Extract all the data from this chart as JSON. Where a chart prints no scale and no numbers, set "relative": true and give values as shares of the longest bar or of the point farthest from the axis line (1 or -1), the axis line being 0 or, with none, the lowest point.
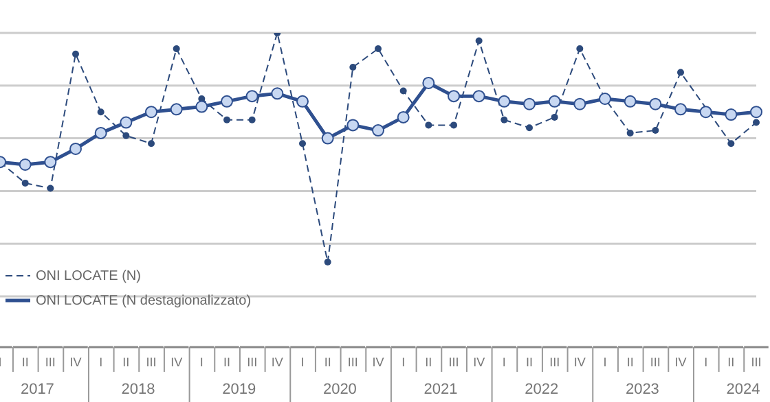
{
  "chart_data": {
    "type": "line",
    "relative": true,
    "grid": "y",
    "legend": "bottom left",
    "marker": "circle",
    "categories": [
      "I",
      "II",
      "III",
      "IV",
      "I",
      "II",
      "III",
      "IV",
      "I",
      "II",
      "III",
      "IV",
      "I",
      "II",
      "III",
      "IV",
      "I",
      "II",
      "III",
      "IV",
      "I",
      "II",
      "III",
      "IV",
      "I",
      "II",
      "III",
      "IV",
      "I",
      "II",
      "III"
    ],
    "annotations": [
      "2017",
      "2018",
      "2019",
      "2020",
      "2021",
      "2022",
      "2023",
      "2024"
    ],
    "series": [
      {
        "name": "ONI LOCATE (N)",
        "color": "#2c4a7c",
        "line_style": "dashed",
        "values": [
          0.51,
          0.43,
          0.41,
          0.92,
          0.7,
          0.61,
          0.58,
          0.94,
          0.75,
          0.67,
          0.67,
          1,
          0.58,
          0.13,
          0.87,
          0.94,
          0.78,
          0.65,
          0.65,
          0.97,
          0.67,
          0.64,
          0.68,
          0.94,
          0.75,
          0.62,
          0.63,
          0.85,
          null,
          0.58,
          0.66
        ]
      },
      {
        "name": "ONI LOCATE (N destagionalizzato)",
        "color": "#2f5090",
        "line_style": "solid",
        "values": [
          0.51,
          0.5,
          0.51,
          0.56,
          0.62,
          0.66,
          0.7,
          0.71,
          0.72,
          0.74,
          0.76,
          0.77,
          0.74,
          0.6,
          0.65,
          0.63,
          0.68,
          0.81,
          0.76,
          0.76,
          0.74,
          0.73,
          0.74,
          0.73,
          0.75,
          0.74,
          0.73,
          0.71,
          0.7,
          0.69,
          0.7
        ]
      }
    ]
  }
}
